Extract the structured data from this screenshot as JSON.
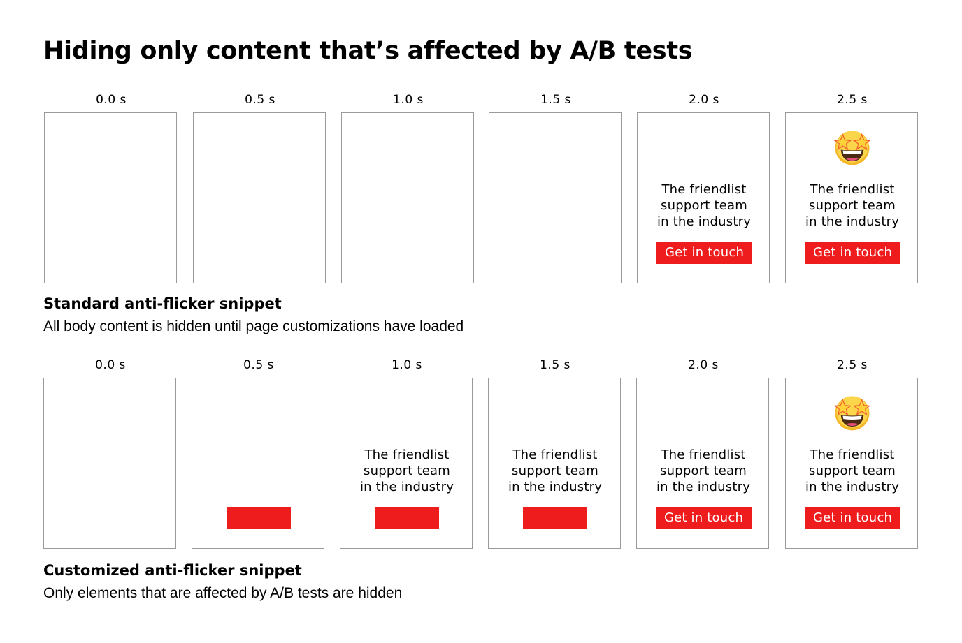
{
  "title": "Hiding only content that’s affected by A/B tests",
  "accent_color": "#ee1c1c",
  "sections": [
    {
      "heading": "Standard anti-flicker snippet",
      "description": "All body content is hidden until page customizations have loaded",
      "frames": [
        {
          "time": "0.0 s",
          "emoji": false,
          "text": "",
          "button": ""
        },
        {
          "time": "0.5 s",
          "emoji": false,
          "text": "",
          "button": ""
        },
        {
          "time": "1.0 s",
          "emoji": false,
          "text": "",
          "button": ""
        },
        {
          "time": "1.5 s",
          "emoji": false,
          "text": "",
          "button": ""
        },
        {
          "time": "2.0 s",
          "emoji": false,
          "text": "The friendlist\nsupport team\nin the industry",
          "button": "Get in touch"
        },
        {
          "time": "2.5 s",
          "emoji": true,
          "text": "The friendlist\nsupport team\nin the industry",
          "button": "Get in touch"
        }
      ]
    },
    {
      "heading": "Customized anti-flicker snippet",
      "description": "Only elements that are affected by A/B tests are hidden",
      "frames": [
        {
          "time": "0.0 s",
          "emoji": false,
          "text": "",
          "button": ""
        },
        {
          "time": "0.5 s",
          "emoji": false,
          "text": "",
          "button": "",
          "blank_button": true
        },
        {
          "time": "1.0 s",
          "emoji": false,
          "text": "The friendlist\nsupport team\nin the industry",
          "button": "",
          "blank_button": true
        },
        {
          "time": "1.5 s",
          "emoji": false,
          "text": "The friendlist\nsupport team\nin the industry",
          "button": "",
          "blank_button": true
        },
        {
          "time": "2.0 s",
          "emoji": false,
          "text": "The friendlist\nsupport team\nin the industry",
          "button": "Get in touch"
        },
        {
          "time": "2.5 s",
          "emoji": true,
          "text": "The friendlist\nsupport team\nin the industry",
          "button": "Get in touch"
        }
      ]
    }
  ]
}
